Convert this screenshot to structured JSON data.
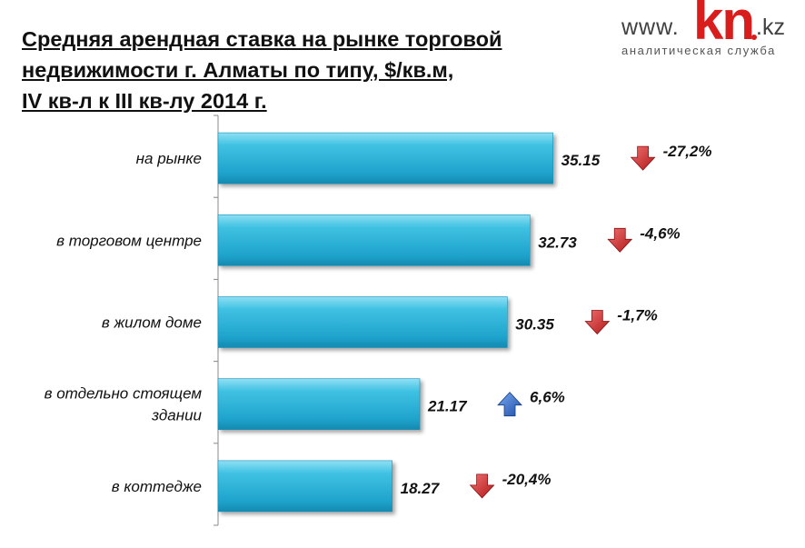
{
  "title_lines": [
    "Средняя арендная ставка на рынке торговой",
    "недвижимости г. Алматы по типу, $/кв.м,",
    "IV кв-л к III кв-лу 2014 г."
  ],
  "logo": {
    "prefix": "www.",
    "brand": "kn",
    "suffix": ".kz",
    "tagline": "аналитическая служба",
    "brand_color": "#d91c1c"
  },
  "chart_data": {
    "type": "bar",
    "orientation": "horizontal",
    "title": "Средняя арендная ставка на рынке торговой недвижимости г. Алматы по типу, $/кв.м, IV кв-л к III кв-лу 2014 г.",
    "categories": [
      [
        "на рынке"
      ],
      [
        "в торговом центре"
      ],
      [
        "в жилом доме"
      ],
      [
        "в отдельно стоящем",
        "здании"
      ],
      [
        "в коттедже"
      ]
    ],
    "values": [
      35.15,
      32.73,
      30.35,
      21.17,
      18.27
    ],
    "value_labels": [
      "35.15",
      "32.73",
      "30.35",
      "21.17",
      "18.27"
    ],
    "changes": [
      "-27,2%",
      "-4,6%",
      "-1,7%",
      "6,6%",
      "-20,4%"
    ],
    "change_directions": [
      "down",
      "down",
      "down",
      "up",
      "down"
    ],
    "xlim": [
      0,
      41
    ],
    "bar_color": "#2eb4d8",
    "down_color": "#d42a2a",
    "up_color": "#2f6fd0",
    "legend": "none",
    "grid": false
  }
}
